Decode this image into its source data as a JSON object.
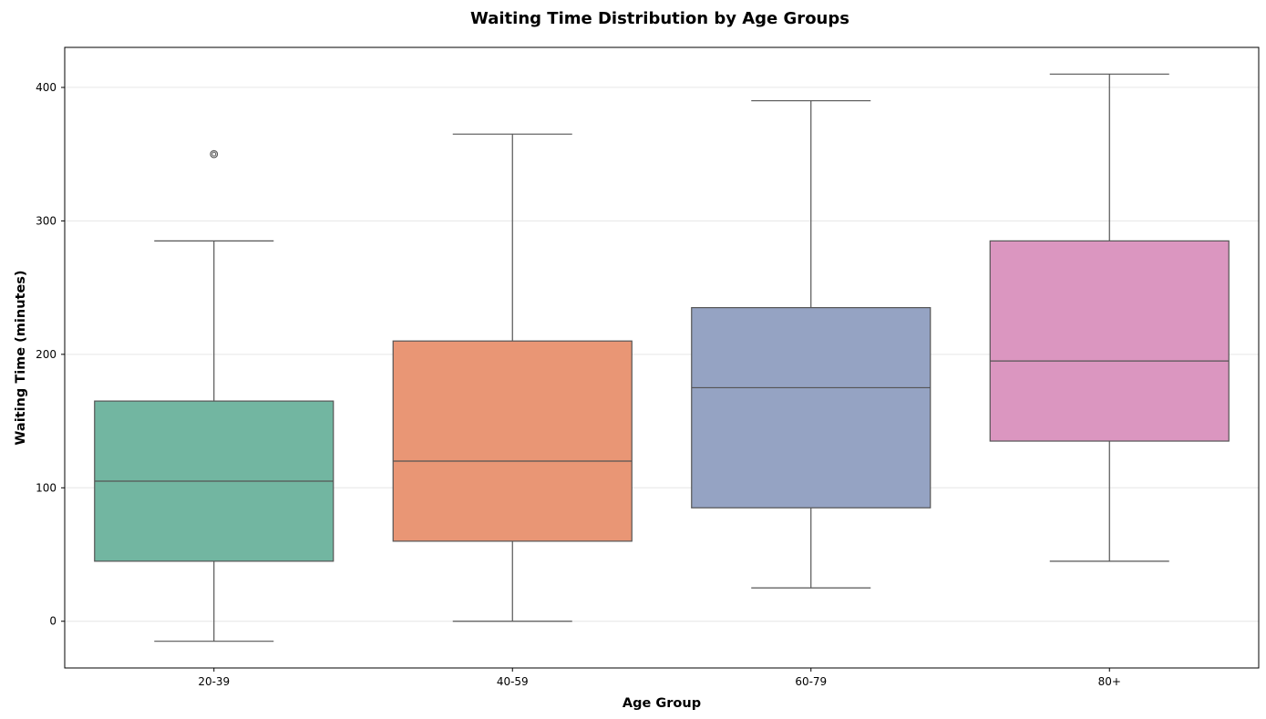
{
  "chart_data": {
    "type": "box",
    "title": "Waiting Time Distribution by Age Groups",
    "xlabel": "Age Group",
    "ylabel": "Waiting Time (minutes)",
    "ylim": [
      -35,
      430
    ],
    "yticks": [
      0,
      100,
      200,
      300,
      400
    ],
    "grid": "y-major",
    "categories": [
      "20-39",
      "40-59",
      "60-79",
      "80+"
    ],
    "boxes": [
      {
        "category": "20-39",
        "whisker_low": -15,
        "q1": 45,
        "median": 105,
        "q3": 165,
        "whisker_high": 285,
        "outliers": [
          350
        ],
        "color": "#72b6a1"
      },
      {
        "category": "40-59",
        "whisker_low": 0,
        "q1": 60,
        "median": 120,
        "q3": 210,
        "whisker_high": 365,
        "outliers": [],
        "color": "#e99675"
      },
      {
        "category": "60-79",
        "whisker_low": 25,
        "q1": 85,
        "median": 175,
        "q3": 235,
        "whisker_high": 390,
        "outliers": [],
        "color": "#95a3c3"
      },
      {
        "category": "80+",
        "whisker_low": 45,
        "q1": 135,
        "median": 195,
        "q3": 285,
        "whisker_high": 410,
        "outliers": [],
        "color": "#db96c0"
      }
    ]
  }
}
